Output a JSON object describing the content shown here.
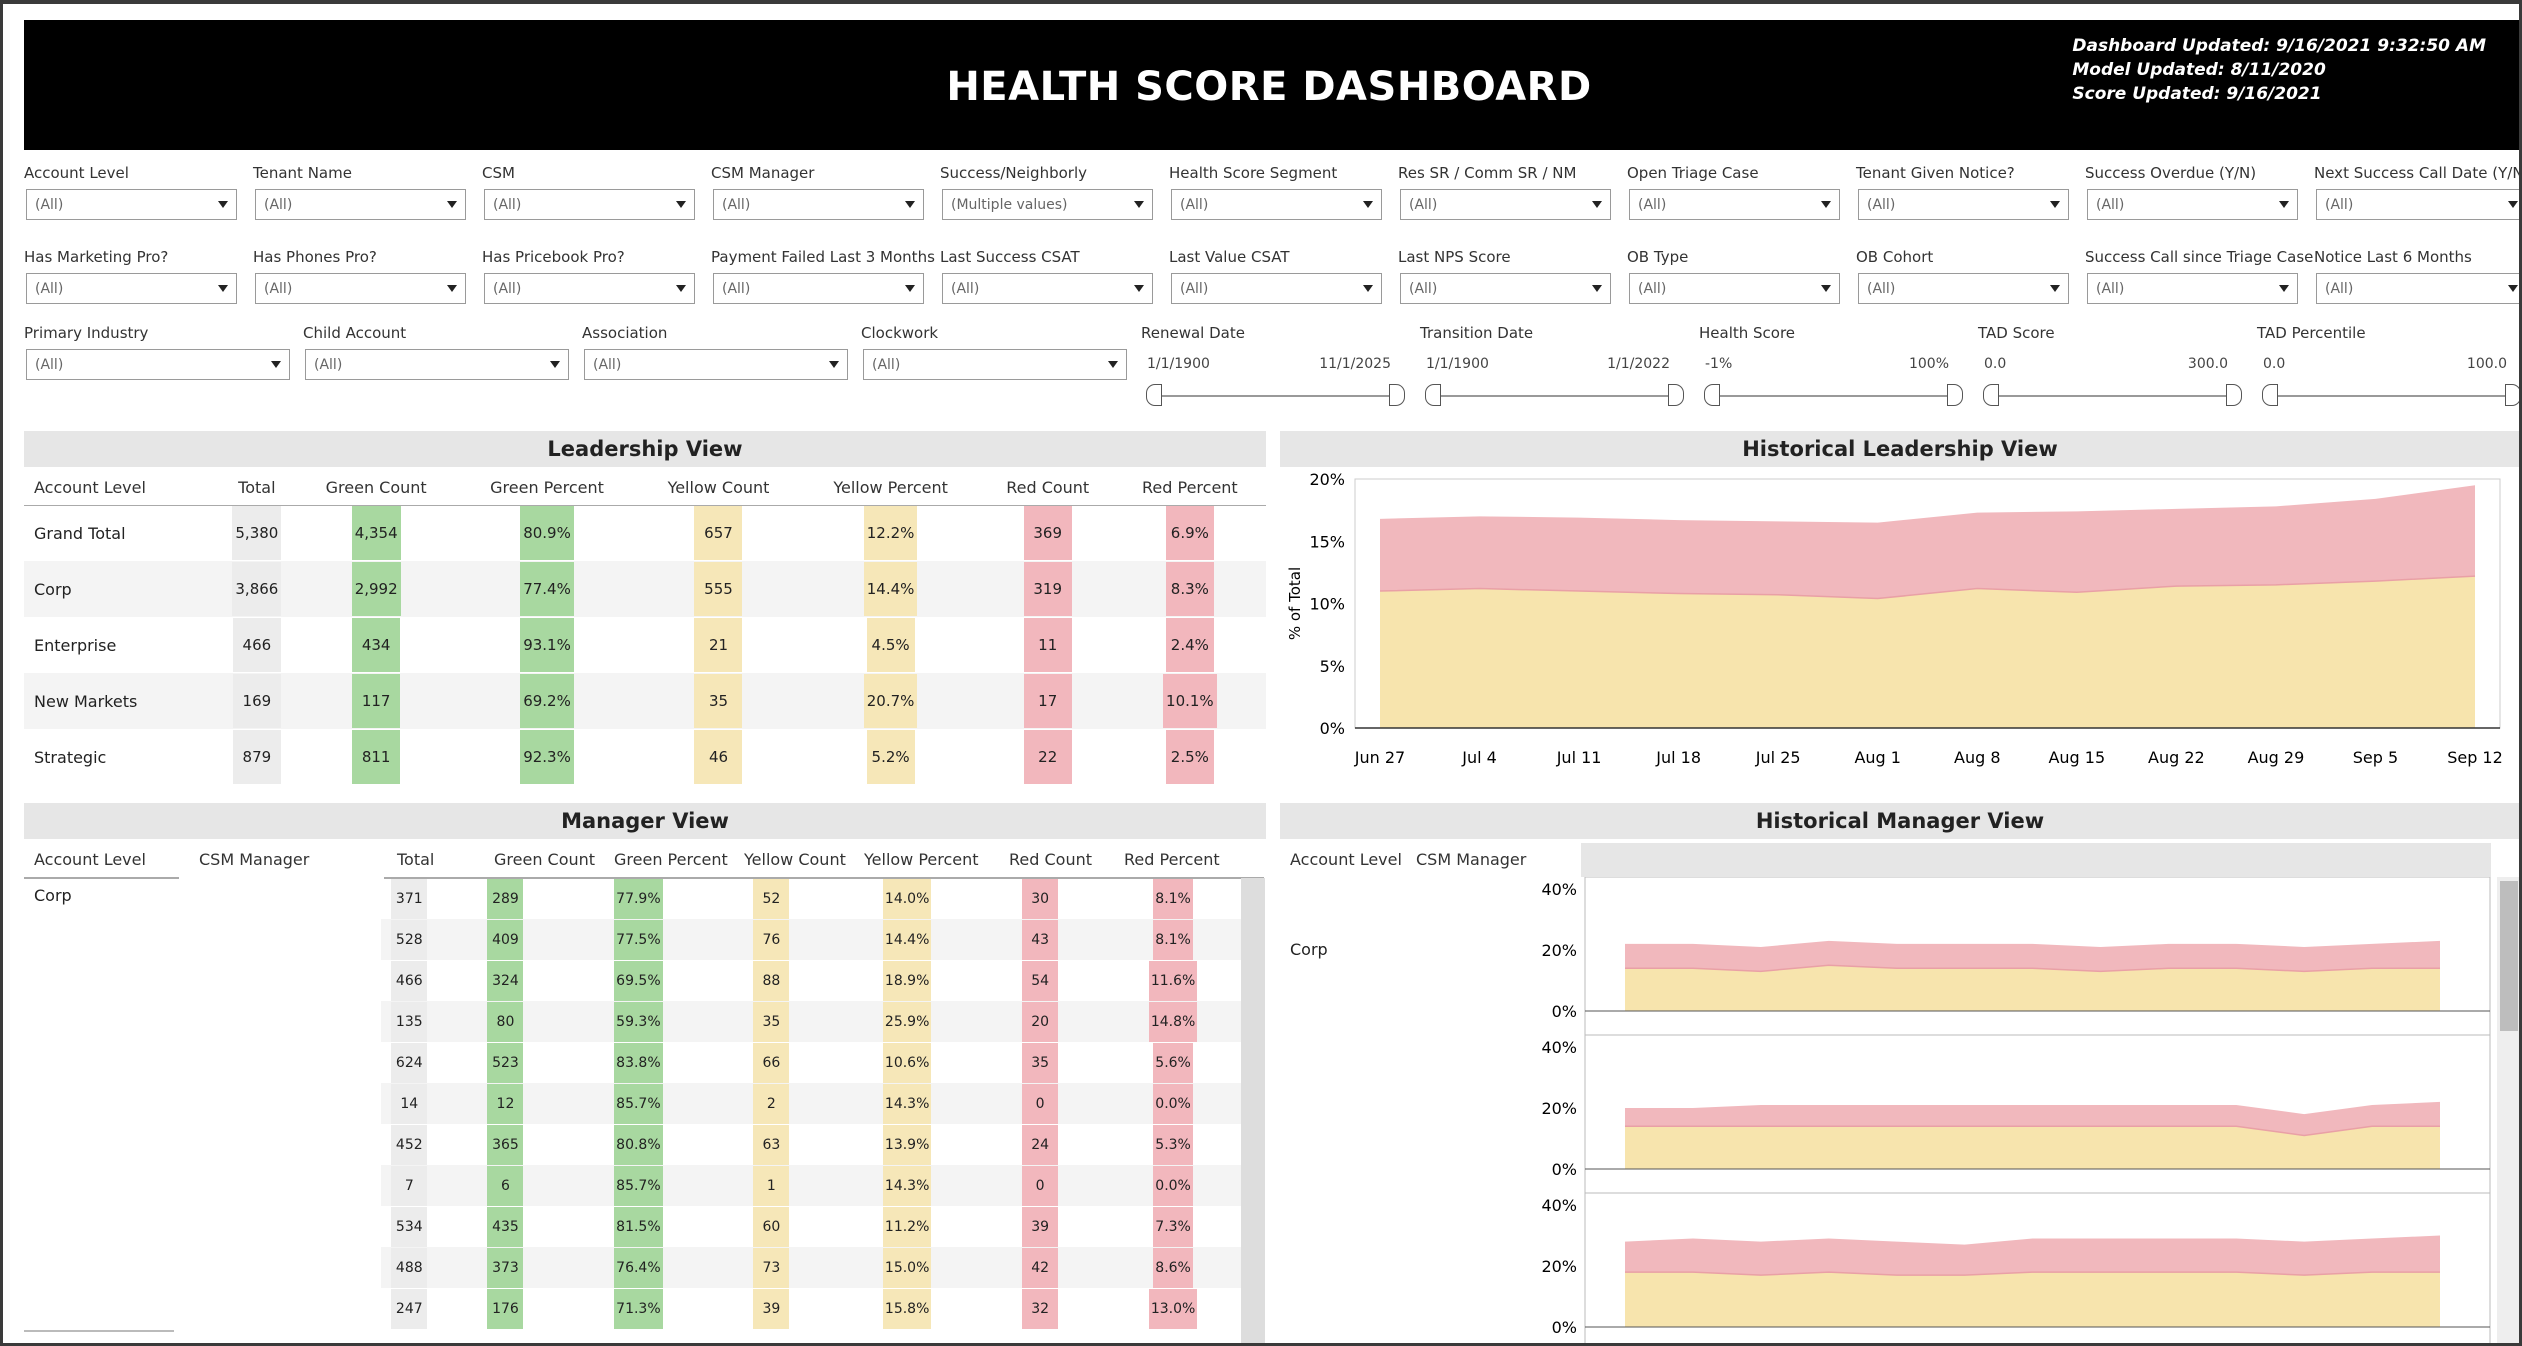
{
  "header": {
    "title": "HEALTH SCORE DASHBOARD",
    "dashboard_updated": "Dashboard Updated: 9/16/2021 9:32:50 AM",
    "model_updated": "Model Updated: 8/11/2020",
    "score_updated": "Score Updated: 9/16/2021"
  },
  "filters": {
    "row1": [
      {
        "label": "Account Level",
        "value": "(All)"
      },
      {
        "label": "Tenant Name",
        "value": "(All)"
      },
      {
        "label": "CSM",
        "value": "(All)"
      },
      {
        "label": "CSM Manager",
        "value": "(All)"
      },
      {
        "label": "Success/Neighborly",
        "value": "(Multiple values)"
      },
      {
        "label": "Health Score Segment",
        "value": "(All)"
      },
      {
        "label": "Res SR / Comm SR / NM",
        "value": "(All)"
      },
      {
        "label": "Open Triage Case",
        "value": "(All)"
      },
      {
        "label": "Tenant Given Notice?",
        "value": "(All)"
      },
      {
        "label": "Success Overdue (Y/N)",
        "value": "(All)"
      },
      {
        "label": "Next Success Call Date (Y/N)",
        "value": "(All)"
      }
    ],
    "row2": [
      {
        "label": "Has Marketing Pro?",
        "value": "(All)"
      },
      {
        "label": "Has Phones Pro?",
        "value": "(All)"
      },
      {
        "label": "Has Pricebook Pro?",
        "value": "(All)"
      },
      {
        "label": "Payment Failed Last 3 Months",
        "value": "(All)"
      },
      {
        "label": "Last Success CSAT",
        "value": "(All)"
      },
      {
        "label": "Last Value CSAT",
        "value": "(All)"
      },
      {
        "label": "Last NPS Score",
        "value": "(All)"
      },
      {
        "label": "OB Type",
        "value": "(All)"
      },
      {
        "label": "OB Cohort",
        "value": "(All)"
      },
      {
        "label": "Success Call since Triage Case",
        "value": "(All)"
      },
      {
        "label": "Notice Last 6 Months",
        "value": "(All)"
      }
    ],
    "row3": [
      {
        "label": "Primary Industry",
        "value": "(All)"
      },
      {
        "label": "Child Account",
        "value": "(All)"
      },
      {
        "label": "Association",
        "value": "(All)"
      },
      {
        "label": "Clockwork",
        "value": "(All)"
      }
    ],
    "ranges": [
      {
        "label": "Renewal Date",
        "min": "1/1/1900",
        "max": "11/1/2025"
      },
      {
        "label": "Transition Date",
        "min": "1/1/1900",
        "max": "1/1/2022"
      },
      {
        "label": "Health Score",
        "min": "-1%",
        "max": "100%"
      },
      {
        "label": "TAD Score",
        "min": "0.0",
        "max": "300.0"
      },
      {
        "label": "TAD Percentile",
        "min": "0.0",
        "max": "100.0"
      }
    ]
  },
  "leadership": {
    "title": "Leadership View",
    "columns": [
      "Account Level",
      "Total",
      "Green Count",
      "Green Percent",
      "Yellow Count",
      "Yellow Percent",
      "Red Count",
      "Red Percent"
    ],
    "rows": [
      [
        "Grand Total",
        "5,380",
        "4,354",
        "80.9%",
        "657",
        "12.2%",
        "369",
        "6.9%"
      ],
      [
        "Corp",
        "3,866",
        "2,992",
        "77.4%",
        "555",
        "14.4%",
        "319",
        "8.3%"
      ],
      [
        "Enterprise",
        "466",
        "434",
        "93.1%",
        "21",
        "4.5%",
        "11",
        "2.4%"
      ],
      [
        "New Markets",
        "169",
        "117",
        "69.2%",
        "35",
        "20.7%",
        "17",
        "10.1%"
      ],
      [
        "Strategic",
        "879",
        "811",
        "92.3%",
        "46",
        "5.2%",
        "22",
        "2.5%"
      ]
    ]
  },
  "manager": {
    "title": "Manager View",
    "columns": [
      "Account Level",
      "CSM Manager",
      "Total",
      "Green Count",
      "Green Percent",
      "Yellow Count",
      "Yellow Percent",
      "Red Count",
      "Red Percent"
    ],
    "group": "Corp",
    "rows": [
      [
        "371",
        "289",
        "77.9%",
        "52",
        "14.0%",
        "30",
        "8.1%"
      ],
      [
        "528",
        "409",
        "77.5%",
        "76",
        "14.4%",
        "43",
        "8.1%"
      ],
      [
        "466",
        "324",
        "69.5%",
        "88",
        "18.9%",
        "54",
        "11.6%"
      ],
      [
        "135",
        "80",
        "59.3%",
        "35",
        "25.9%",
        "20",
        "14.8%"
      ],
      [
        "624",
        "523",
        "83.8%",
        "66",
        "10.6%",
        "35",
        "5.6%"
      ],
      [
        "14",
        "12",
        "85.7%",
        "2",
        "14.3%",
        "0",
        "0.0%"
      ],
      [
        "452",
        "365",
        "80.8%",
        "63",
        "13.9%",
        "24",
        "5.3%"
      ],
      [
        "7",
        "6",
        "85.7%",
        "1",
        "14.3%",
        "0",
        "0.0%"
      ],
      [
        "534",
        "435",
        "81.5%",
        "60",
        "11.2%",
        "39",
        "7.3%"
      ],
      [
        "488",
        "373",
        "76.4%",
        "73",
        "15.0%",
        "42",
        "8.6%"
      ],
      [
        "247",
        "176",
        "71.3%",
        "39",
        "15.8%",
        "32",
        "13.0%"
      ]
    ]
  },
  "colors": {
    "green": "#a8d8a0",
    "yellow": "#f6e7b8",
    "red": "#f2b7bd",
    "area_yellow": "#f7e4ad",
    "area_red": "#f1b8bd"
  },
  "chart_data": [
    {
      "type": "area",
      "title": "Historical Leadership View",
      "ylabel": "% of Total",
      "ylim": [
        0,
        20
      ],
      "yticks": [
        "0%",
        "5%",
        "10%",
        "15%",
        "20%"
      ],
      "x": [
        "Jun 27",
        "Jul 4",
        "Jul 11",
        "Jul 18",
        "Jul 25",
        "Aug 1",
        "Aug 8",
        "Aug 15",
        "Aug 22",
        "Aug 29",
        "Sep 5",
        "Sep 12"
      ],
      "series": [
        {
          "values": [
            11.0,
            11.2,
            11.0,
            10.8,
            10.7,
            10.4,
            11.2,
            10.9,
            11.4,
            11.5,
            11.8,
            12.2
          ]
        },
        {
          "values": [
            5.8,
            5.8,
            5.9,
            5.9,
            5.9,
            6.1,
            6.1,
            6.5,
            6.2,
            6.3,
            6.6,
            7.3
          ]
        }
      ]
    },
    {
      "type": "area",
      "title": "Historical Manager View",
      "group": "Corp",
      "header_cols": [
        "Account Level",
        "CSM Manager"
      ],
      "yticks": [
        "0%",
        "20%",
        "40%"
      ],
      "ylim": [
        0,
        40
      ],
      "panels": [
        {
          "yellow": [
            14,
            14,
            13,
            15,
            14,
            14,
            14,
            13,
            14,
            14,
            13,
            14,
            14
          ],
          "red": [
            8,
            8,
            8,
            8,
            8,
            8,
            8,
            8,
            8,
            8,
            8,
            8,
            9
          ]
        },
        {
          "yellow": [
            14,
            14,
            14,
            14,
            14,
            14,
            14,
            14,
            14,
            14,
            11,
            14,
            14
          ],
          "red": [
            6,
            6,
            7,
            7,
            7,
            7,
            7,
            7,
            7,
            7,
            7,
            7,
            8
          ]
        },
        {
          "yellow": [
            18,
            18,
            17,
            18,
            17,
            17,
            18,
            18,
            18,
            18,
            17,
            18,
            18
          ],
          "red": [
            10,
            11,
            11,
            11,
            11,
            10,
            11,
            11,
            11,
            11,
            11,
            11,
            12
          ]
        }
      ]
    }
  ]
}
